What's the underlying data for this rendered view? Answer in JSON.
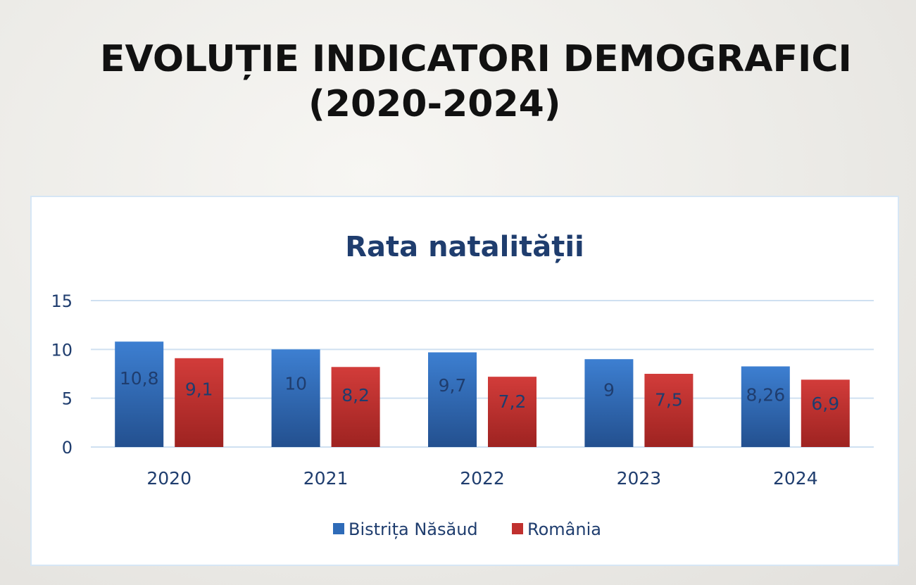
{
  "slide": {
    "title_line1": "EVOLUȚIE INDICATORI DEMOGRAFICI",
    "title_line2": "(2020-2024)"
  },
  "chart_data": {
    "type": "bar",
    "title": "Rata natalității",
    "categories": [
      "2020",
      "2021",
      "2022",
      "2023",
      "2024"
    ],
    "series": [
      {
        "name": "Bistrița Năsăud",
        "values": [
          10.8,
          10,
          9.7,
          9,
          8.26
        ],
        "labels": [
          "10,8",
          "10",
          "9,7",
          "9",
          "8,26"
        ],
        "color": "#2e6bb8"
      },
      {
        "name": "România",
        "values": [
          9.1,
          8.2,
          7.2,
          7.5,
          6.9
        ],
        "labels": [
          "9,1",
          "8,2",
          "7,2",
          "7,5",
          "6,9"
        ],
        "color": "#c0302e"
      }
    ],
    "yticks": [
      "0",
      "5",
      "10",
      "15"
    ],
    "ylim": [
      0,
      15
    ],
    "grid": true,
    "legend": "bottom",
    "title_color": "#1f3d6e",
    "axis_text_color": "#1f3d6e"
  }
}
